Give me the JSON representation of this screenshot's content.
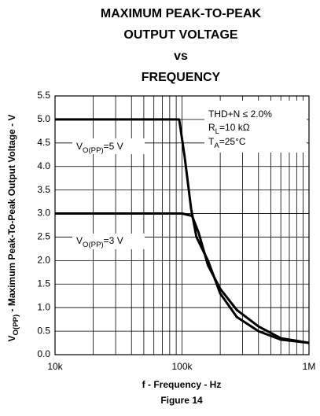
{
  "chart_data": {
    "type": "line",
    "title": [
      "MAXIMUM PEAK-TO-PEAK",
      "OUTPUT VOLTAGE",
      "vs",
      "FREQUENCY"
    ],
    "xlabel": "f - Frequency - Hz",
    "ylabel": {
      "main": "V",
      "sub": "O(PP)",
      "rest": " - Maximum Peak-To-Peak Output Voltage - V"
    },
    "caption": "Figure 14",
    "xscale": "log",
    "grid": true,
    "xlim": [
      10000,
      1000000
    ],
    "ylim": [
      0,
      5.5
    ],
    "xticks": [
      {
        "value": 10000,
        "label": "10k"
      },
      {
        "value": 100000,
        "label": "100k"
      },
      {
        "value": 1000000,
        "label": "1M"
      }
    ],
    "x_minor_ticks": [
      20000,
      30000,
      40000,
      50000,
      60000,
      70000,
      80000,
      90000,
      200000,
      300000,
      400000,
      500000,
      600000,
      700000,
      800000,
      900000
    ],
    "yticks": [
      {
        "value": 0,
        "label": "0.0"
      },
      {
        "value": 0.5,
        "label": "0.5"
      },
      {
        "value": 1,
        "label": "1.0"
      },
      {
        "value": 1.5,
        "label": "1.5"
      },
      {
        "value": 2,
        "label": "2.0"
      },
      {
        "value": 2.5,
        "label": "2.5"
      },
      {
        "value": 3,
        "label": "3.0"
      },
      {
        "value": 3.5,
        "label": "3.5"
      },
      {
        "value": 4,
        "label": "4.0"
      },
      {
        "value": 4.5,
        "label": "4.5"
      },
      {
        "value": 5,
        "label": "5.0"
      },
      {
        "value": 5.5,
        "label": "5.5"
      }
    ],
    "series": [
      {
        "color": "#000000",
        "x": [
          10000,
          50000,
          95000,
          105000,
          118000,
          130000,
          160000,
          200000,
          270000,
          400000,
          600000,
          1000000
        ],
        "values": [
          5,
          5,
          5,
          4.2,
          3.1,
          2.5,
          2.0,
          1.3,
          0.8,
          0.5,
          0.32,
          0.25
        ]
      },
      {
        "color": "#000000",
        "x": [
          10000,
          50000,
          100000,
          120000,
          135000,
          160000,
          200000,
          270000,
          400000,
          600000,
          1000000
        ],
        "values": [
          3,
          3,
          3,
          2.95,
          2.6,
          1.9,
          1.4,
          0.95,
          0.6,
          0.35,
          0.25
        ]
      }
    ],
    "annotations": [
      {
        "main": "V",
        "sub": "O(PP)",
        "rest": "=5 V"
      },
      {
        "main": "V",
        "sub": "O(PP)",
        "rest": "=3 V"
      },
      {
        "main": "THD+N ≤ 2.0%"
      },
      {
        "main": "R",
        "sub": "L",
        "rest": "=10 kΩ"
      },
      {
        "main": "T",
        "sub": "A",
        "rest": "=25°C"
      }
    ]
  }
}
